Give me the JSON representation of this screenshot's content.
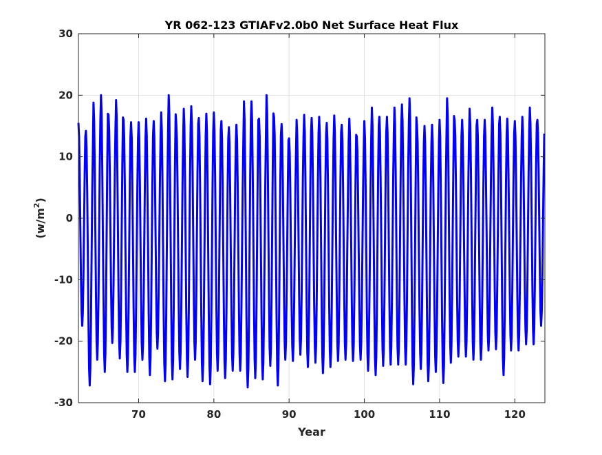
{
  "chart_data": {
    "type": "line",
    "title": "YR 062-123 GTIAFv2.0b0 Net Surface Heat Flux",
    "xlabel": "Year",
    "ylabel": {
      "prefix": "(w/m",
      "superscript": "2",
      "suffix": ")"
    },
    "xlim": [
      62,
      124
    ],
    "ylim": [
      -30,
      30
    ],
    "x_ticks": [
      70,
      80,
      90,
      100,
      110,
      120
    ],
    "y_ticks": [
      -30,
      -20,
      -10,
      0,
      10,
      20,
      30
    ],
    "grid": true,
    "legend": "none",
    "line_color": "#0000ff",
    "series": [
      {
        "values_per_year": 12,
        "start_year": 62,
        "annual_cycle": {
          "x_year": [
            62,
            63,
            64,
            65,
            66,
            67,
            68,
            69,
            70,
            71,
            72,
            73,
            74,
            75,
            76,
            77,
            78,
            79,
            80,
            81,
            82,
            83,
            84,
            85,
            86,
            87,
            88,
            89,
            90,
            91,
            92,
            93,
            94,
            95,
            96,
            97,
            98,
            99,
            100,
            101,
            102,
            103,
            104,
            105,
            106,
            107,
            108,
            109,
            110,
            111,
            112,
            113,
            114,
            115,
            116,
            117,
            118,
            119,
            120,
            121,
            122,
            123
          ],
          "annual_max": [
            15.5,
            14.2,
            18.8,
            20.0,
            16.8,
            19.2,
            16.0,
            15.6,
            15.6,
            16.2,
            15.8,
            17.2,
            20.0,
            15.5,
            17.8,
            18.2,
            16.3,
            17.0,
            17.2,
            15.8,
            14.8,
            15.2,
            19.0,
            19.0,
            16.2,
            20.0,
            16.5,
            15.3,
            13.0,
            16.0,
            16.8,
            16.3,
            16.5,
            15.5,
            16.7,
            15.2,
            16.2,
            13.3,
            15.8,
            18.0,
            16.5,
            16.5,
            18.0,
            18.5,
            19.5,
            15.0,
            15.0,
            15.2,
            16.0,
            19.5,
            16.0,
            16.0,
            17.8,
            16.0,
            16.0,
            18.0,
            16.5,
            16.2,
            15.8,
            16.5,
            18.0,
            16.0
          ],
          "annual_min": [
            -17.5,
            -27.2,
            -23.0,
            -25.0,
            -20.3,
            -22.8,
            -25.0,
            -25.0,
            -23.0,
            -25.5,
            -21.2,
            -26.5,
            -26.2,
            -24.5,
            -25.8,
            -23.0,
            -26.5,
            -27.0,
            -24.8,
            -26.0,
            -24.8,
            -24.8,
            -27.5,
            -26.0,
            -26.2,
            -24.0,
            -27.2,
            -23.0,
            -23.2,
            -22.2,
            -24.2,
            -23.5,
            -25.2,
            -24.2,
            -23.2,
            -23.0,
            -23.2,
            -23.0,
            -24.8,
            -25.5,
            -24.0,
            -23.8,
            -23.8,
            -23.8,
            -27.0,
            -24.5,
            -26.5,
            -25.0,
            -26.8,
            -23.5,
            -22.5,
            -22.5,
            -23.0,
            -23.0,
            -21.5,
            -21.3,
            -25.5,
            -21.5,
            -21.5,
            -20.5,
            -20.5,
            -17.5
          ]
        }
      }
    ]
  }
}
